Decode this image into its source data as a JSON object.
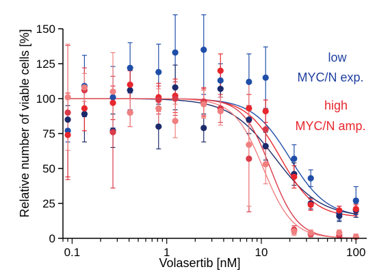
{
  "chart_data": {
    "type": "scatter",
    "title": "",
    "xlabel": "Volasertib [nM]",
    "ylabel": "Relative number of viable cells [%]",
    "xscale": "log",
    "xlim": [
      0.08,
      130
    ],
    "ylim": [
      0,
      150
    ],
    "xticks": [
      {
        "value": 0.1,
        "label": "0.1"
      },
      {
        "value": 1,
        "label": "1"
      },
      {
        "value": 10,
        "label": "10"
      },
      {
        "value": 100,
        "label": "100"
      }
    ],
    "yticks": [
      {
        "value": 0,
        "label": "0"
      },
      {
        "value": 25,
        "label": "25"
      },
      {
        "value": 50,
        "label": "50"
      },
      {
        "value": 75,
        "label": "75"
      },
      {
        "value": 100,
        "label": "100"
      },
      {
        "value": 125,
        "label": "125"
      },
      {
        "value": 150,
        "label": "150"
      }
    ],
    "grid": false,
    "legend_position": "right",
    "legend": [
      {
        "lines": [
          "low",
          "MYC/N exp."
        ],
        "color": "#1f3fa0"
      },
      {
        "lines": [
          "high",
          "MYC/N amp."
        ],
        "color": "#e8262d"
      }
    ],
    "x": [
      0.09,
      0.135,
      0.27,
      0.41,
      0.82,
      1.23,
      2.46,
      3.7,
      7.4,
      11.1,
      22.2,
      33.3,
      66.6,
      100
    ],
    "series": [
      {
        "group": "low MYC/N exp.",
        "color": "#1f4ea8",
        "y": [
          77,
          109,
          101,
          122,
          119,
          133,
          135,
          113,
          112,
          115,
          57,
          43,
          18,
          27
        ],
        "err": [
          8,
          22,
          22,
          18,
          20,
          30,
          32,
          12,
          20,
          22,
          10,
          6,
          5,
          10
        ],
        "fit": {
          "bottom": 15,
          "top": 100,
          "ic50": 20,
          "hill": 2.2
        }
      },
      {
        "group": "low MYC/N exp.",
        "color": "#1b2a6b",
        "y": [
          85,
          89,
          77,
          106,
          80,
          108,
          79,
          107,
          85,
          66,
          46,
          25,
          16,
          20
        ],
        "err": [
          10,
          20,
          12,
          14,
          16,
          16,
          10,
          6,
          10,
          10,
          8,
          4,
          4,
          5
        ],
        "fit": {
          "bottom": 15,
          "top": 100,
          "ic50": 14,
          "hill": 1.8
        }
      },
      {
        "group": "high MYC/N amp.",
        "color": "#e8262d",
        "y": [
          74,
          93,
          97,
          110,
          101,
          102,
          97,
          120,
          93,
          91,
          44,
          24,
          20,
          21
        ],
        "err": [
          30,
          16,
          12,
          10,
          10,
          12,
          10,
          12,
          10,
          8,
          8,
          4,
          3,
          3
        ],
        "fit": {
          "bottom": 15,
          "top": 100,
          "ic50": 16,
          "hill": 2.4
        }
      },
      {
        "group": "high MYC/N amp.",
        "color": "#d93a4a",
        "y": [
          90,
          106,
          76,
          90,
          99,
          100,
          98,
          93,
          57,
          78,
          6,
          3,
          2,
          1
        ],
        "err": [
          48,
          16,
          40,
          10,
          10,
          12,
          10,
          10,
          38,
          14,
          3,
          2,
          2,
          2
        ],
        "fit": {
          "bottom": 0,
          "top": 100,
          "ic50": 12.5,
          "hill": 3.0
        }
      },
      {
        "group": "high MYC/N amp.",
        "color": "#f08080",
        "y": [
          101,
          108,
          105,
          90,
          93,
          84,
          96,
          91,
          67,
          53,
          5,
          4,
          4,
          1
        ],
        "err": [
          38,
          10,
          28,
          10,
          14,
          12,
          10,
          10,
          44,
          14,
          3,
          2,
          2,
          2
        ],
        "fit": {
          "bottom": 0,
          "top": 100,
          "ic50": 10.5,
          "hill": 2.8
        }
      }
    ]
  }
}
